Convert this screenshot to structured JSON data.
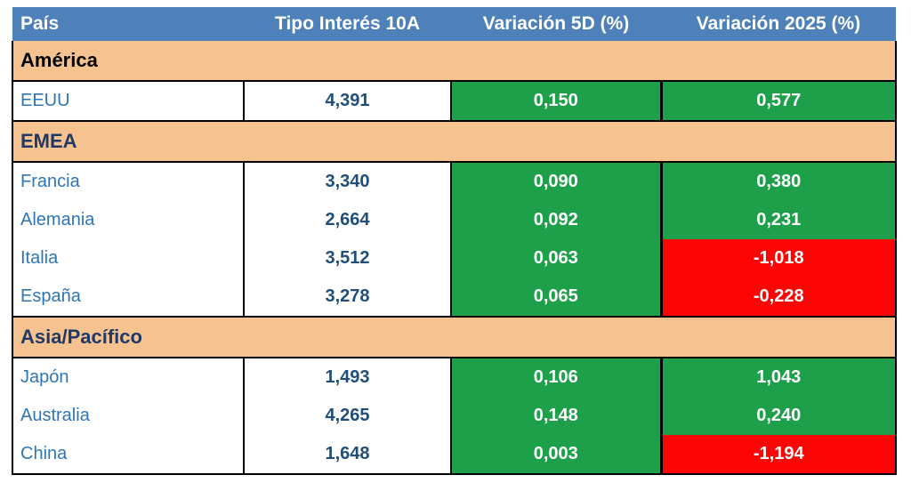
{
  "colors": {
    "header_bg": "#4E80BA",
    "header_text": "#FFFFFF",
    "section_bg": "#F6C390",
    "positive_bg": "#1EA04B",
    "negative_bg": "#FB0505",
    "change_text": "#FFFFFF",
    "country_text": "#2E75B6",
    "rate_text": "#1F4E79",
    "border": "#000000"
  },
  "chart_data": {
    "type": "table",
    "columns": [
      "País",
      "Tipo Interés 10A",
      "Variación 5D (%)",
      "Variación 2025 (%)"
    ],
    "sections": [
      {
        "label": "América",
        "label_color": "#000000",
        "rows": [
          {
            "country": "EEUU",
            "rate": "4,391",
            "var_5d": "0,150",
            "var_5d_sign": "positive",
            "var_2025": "0,577",
            "var_2025_sign": "positive"
          }
        ]
      },
      {
        "label": "EMEA",
        "label_color": "#1F3864",
        "rows": [
          {
            "country": "Francia",
            "rate": "3,340",
            "var_5d": "0,090",
            "var_5d_sign": "positive",
            "var_2025": "0,380",
            "var_2025_sign": "positive"
          },
          {
            "country": "Alemania",
            "rate": "2,664",
            "var_5d": "0,092",
            "var_5d_sign": "positive",
            "var_2025": "0,231",
            "var_2025_sign": "positive"
          },
          {
            "country": "Italia",
            "rate": "3,512",
            "var_5d": "0,063",
            "var_5d_sign": "positive",
            "var_2025": "-1,018",
            "var_2025_sign": "negative"
          },
          {
            "country": "España",
            "rate": "3,278",
            "var_5d": "0,065",
            "var_5d_sign": "positive",
            "var_2025": "-0,228",
            "var_2025_sign": "negative"
          }
        ]
      },
      {
        "label": "Asia/Pacífico",
        "label_color": "#1F3864",
        "rows": [
          {
            "country": "Japón",
            "rate": "1,493",
            "var_5d": "0,106",
            "var_5d_sign": "positive",
            "var_2025": "1,043",
            "var_2025_sign": "positive"
          },
          {
            "country": "Australia",
            "rate": "4,265",
            "var_5d": "0,148",
            "var_5d_sign": "positive",
            "var_2025": "0,240",
            "var_2025_sign": "positive"
          },
          {
            "country": "China",
            "rate": "1,648",
            "var_5d": "0,003",
            "var_5d_sign": "positive",
            "var_2025": "-1,194",
            "var_2025_sign": "negative"
          }
        ]
      }
    ]
  }
}
